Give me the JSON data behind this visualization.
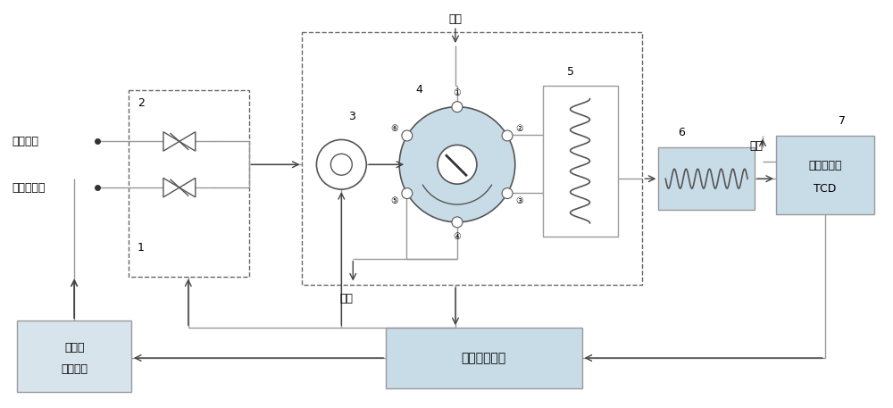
{
  "bg_color": "#ffffff",
  "line_color": "#999999",
  "box_fill_light": "#c8dce8",
  "box_fill_sw": "#d8e4ec",
  "dashed_color": "#666666",
  "arrow_color": "#444444",
  "text_color": "#000000",
  "labels": {
    "ammonia_tank": "氨气罐区",
    "purifier_outlet": "纯化器出口",
    "purifier_switch_l1": "纯化器",
    "purifier_switch_l2": "切换装置",
    "monitor_platform": "监控报警平台",
    "tcd_l1": "热导检测器",
    "tcd_l2": "TCD",
    "carrier_gas_top": "载气",
    "carrier_gas_mid": "载气",
    "exhaust": "排空",
    "num1": "1",
    "num2": "2",
    "num3": "3",
    "num4": "4",
    "num5": "5",
    "num6": "6",
    "num7": "7",
    "p1": "①",
    "p2": "②",
    "p3": "③",
    "p4": "④",
    "p5": "⑤",
    "p6": "⑥"
  }
}
